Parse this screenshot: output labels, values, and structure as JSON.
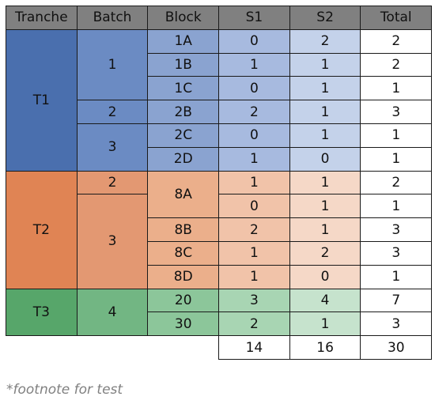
{
  "table": {
    "headers": [
      "Tranche",
      "Batch",
      "Block",
      "S1",
      "S2",
      "Total"
    ],
    "tranches": [
      {
        "label": "T1",
        "color": "#4a6fae"
      },
      {
        "label": "T2",
        "color": "#e08454"
      },
      {
        "label": "T3",
        "color": "#57a66a"
      }
    ],
    "batch_colors": [
      "#6b8bc3",
      "#e39872",
      "#72b683"
    ],
    "block_colors": [
      "#8aa3d0",
      "#ebaf8b",
      "#8cc69a"
    ],
    "s1_colors": [
      "#a7badf",
      "#f1c3a9",
      "#a8d5b3"
    ],
    "s2_colors": [
      "#c4d2ea",
      "#f5d8c7",
      "#c6e3cd"
    ],
    "rows": [
      [
        "T1",
        "1",
        "1A",
        "0",
        "2",
        "2"
      ],
      [
        "T1",
        "1",
        "1B",
        "1",
        "1",
        "2"
      ],
      [
        "T1",
        "1",
        "1C",
        "0",
        "1",
        "1"
      ],
      [
        "T1",
        "2",
        "2B",
        "2",
        "1",
        "3"
      ],
      [
        "T1",
        "3",
        "2C",
        "0",
        "1",
        "1"
      ],
      [
        "T1",
        "3",
        "2D",
        "1",
        "0",
        "1"
      ],
      [
        "T2",
        "2",
        "8A",
        "1",
        "1",
        "2"
      ],
      [
        "T2",
        "3",
        "8A",
        "0",
        "1",
        "1"
      ],
      [
        "T2",
        "3",
        "8B",
        "2",
        "1",
        "3"
      ],
      [
        "T2",
        "3",
        "8C",
        "1",
        "2",
        "3"
      ],
      [
        "T2",
        "3",
        "8D",
        "1",
        "0",
        "1"
      ],
      [
        "T3",
        "4",
        "20",
        "3",
        "4",
        "7"
      ],
      [
        "T3",
        "4",
        "30",
        "2",
        "1",
        "3"
      ]
    ],
    "totals": {
      "s1": "14",
      "s2": "16",
      "total": "30"
    }
  },
  "footnote": "*footnote for test"
}
